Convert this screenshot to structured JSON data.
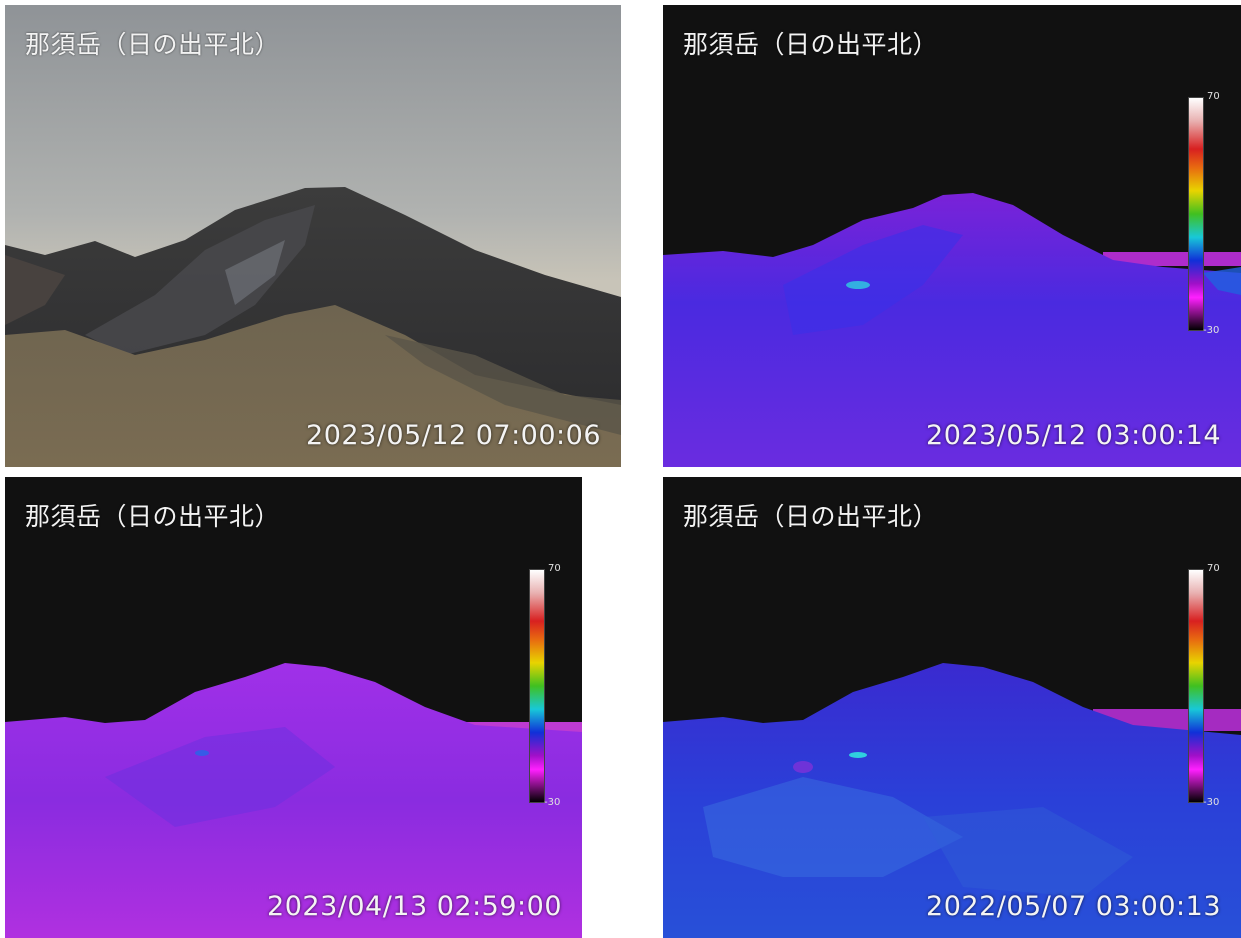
{
  "panels": [
    {
      "id": "visible",
      "title": "那須岳（日の出平北）",
      "timestamp": "2023/05/12 07:00:06",
      "type": "visible-camera"
    },
    {
      "id": "thermal-1",
      "title": "那須岳（日の出平北）",
      "timestamp": "2023/05/12 03:00:14",
      "type": "thermal-camera",
      "scale": {
        "max": "70",
        "min": "-30"
      }
    },
    {
      "id": "thermal-2",
      "title": "那須岳（日の出平北）",
      "timestamp": "2023/04/13 02:59:00",
      "type": "thermal-camera",
      "scale": {
        "max": "70",
        "min": "-30"
      }
    },
    {
      "id": "thermal-3",
      "title": "那須岳（日の出平北）",
      "timestamp": "2022/05/07 03:00:13",
      "type": "thermal-camera",
      "scale": {
        "max": "70",
        "min": "-30"
      }
    }
  ]
}
